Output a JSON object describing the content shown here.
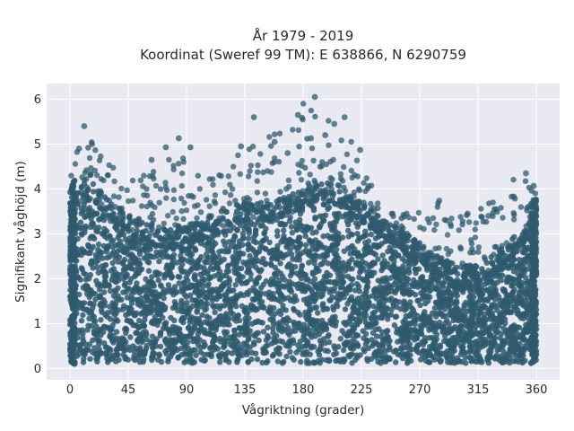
{
  "chart_data": {
    "type": "scatter",
    "title_lines": [
      "År 1979 - 2019",
      "Koordinat (Sweref 99 TM): E 638866, N 6290759"
    ],
    "xlabel": "Vågriktning (grader)",
    "ylabel": "Signifikant våghöjd (m)",
    "xlim": [
      -18,
      378
    ],
    "ylim": [
      -0.25,
      6.35
    ],
    "xticks": [
      0,
      45,
      90,
      135,
      180,
      225,
      270,
      315,
      360
    ],
    "yticks": [
      0,
      1,
      2,
      3,
      4,
      5,
      6
    ],
    "grid": true,
    "colors": {
      "marker": "#2f5a6f",
      "plot_bg": "#e9e9f1",
      "grid": "#ffffff"
    },
    "envelope": {
      "direction": [
        0,
        10,
        20,
        30,
        45,
        60,
        75,
        90,
        105,
        120,
        135,
        150,
        165,
        180,
        195,
        210,
        225,
        240,
        255,
        270,
        285,
        300,
        315,
        330,
        345,
        360
      ],
      "dense_upper_height": [
        3.6,
        4.2,
        4.1,
        3.7,
        3.5,
        3.2,
        3.1,
        3.2,
        3.3,
        3.6,
        3.7,
        3.7,
        3.8,
        4.0,
        4.2,
        4.0,
        3.7,
        3.4,
        3.1,
        2.8,
        2.5,
        2.3,
        2.3,
        2.6,
        3.0,
        3.4
      ],
      "dense_lower_height": 0.12,
      "scatter_max_height": [
        4.5,
        5.4,
        5.0,
        4.6,
        4.2,
        4.5,
        4.7,
        4.9,
        4.2,
        4.5,
        5.0,
        5.2,
        5.3,
        6.05,
        5.6,
        5.5,
        4.8,
        4.0,
        3.6,
        3.6,
        3.7,
        3.5,
        3.6,
        3.9,
        4.3,
        4.1
      ]
    },
    "highlight_points": [
      {
        "x": 189,
        "y": 6.05
      },
      {
        "x": 176,
        "y": 5.65
      },
      {
        "x": 142,
        "y": 5.6
      },
      {
        "x": 212,
        "y": 5.6
      },
      {
        "x": 204,
        "y": 5.45
      },
      {
        "x": 11,
        "y": 5.4
      },
      {
        "x": 197,
        "y": 5.2
      },
      {
        "x": 186,
        "y": 5.13
      },
      {
        "x": 84,
        "y": 5.13
      },
      {
        "x": 63,
        "y": 4.65
      },
      {
        "x": 93,
        "y": 4.93
      },
      {
        "x": 74,
        "y": 4.93
      },
      {
        "x": 158,
        "y": 5.05
      },
      {
        "x": 168,
        "y": 4.8
      },
      {
        "x": 224,
        "y": 4.87
      },
      {
        "x": 285,
        "y": 3.74
      },
      {
        "x": 352,
        "y": 4.35
      },
      {
        "x": 358,
        "y": 4.07
      },
      {
        "x": 17,
        "y": 5.0
      },
      {
        "x": 7,
        "y": 4.9
      },
      {
        "x": 132,
        "y": 4.95
      },
      {
        "x": 307,
        "y": 3.45
      },
      {
        "x": 323,
        "y": 3.4
      },
      {
        "x": 329,
        "y": 3.55
      }
    ]
  }
}
